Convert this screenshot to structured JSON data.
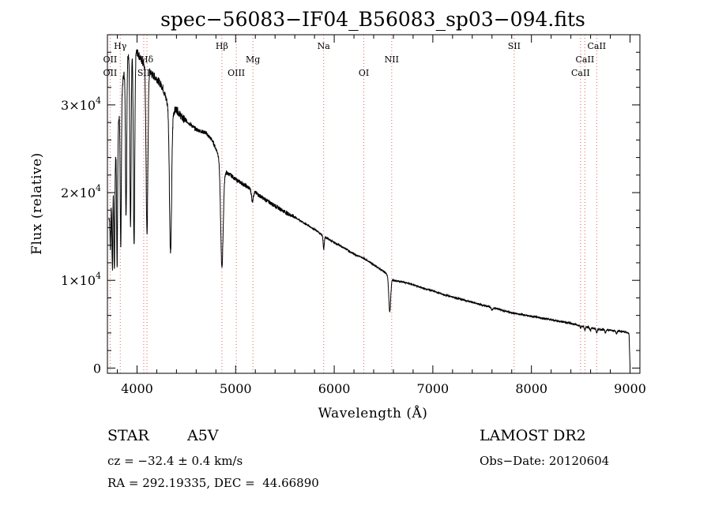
{
  "chart_data": {
    "type": "line",
    "title": "spec−56083−IF04_B56083_sp03−094.fits",
    "xlabel": "Wavelength (Å)",
    "ylabel": "Flux (relative)",
    "xlim": [
      3700,
      9100
    ],
    "ylim": [
      -600,
      38000
    ],
    "x_ticks": [
      4000,
      5000,
      6000,
      7000,
      8000,
      9000
    ],
    "x_tick_labels": [
      "4000",
      "5000",
      "6000",
      "7000",
      "8000",
      "9000"
    ],
    "y_ticks": [
      {
        "value": 0,
        "mantissa": "0",
        "exponent": ""
      },
      {
        "value": 10000,
        "mantissa": "1×10",
        "exponent": "4"
      },
      {
        "value": 20000,
        "mantissa": "2×10",
        "exponent": "4"
      },
      {
        "value": 30000,
        "mantissa": "3×10",
        "exponent": "4"
      }
    ],
    "continuum": [
      [
        3715,
        17000
      ],
      [
        3740,
        19000
      ],
      [
        3780,
        24000
      ],
      [
        3820,
        29000
      ],
      [
        3860,
        33000
      ],
      [
        3900,
        35500
      ],
      [
        3950,
        36500
      ],
      [
        4000,
        36000
      ],
      [
        4050,
        35000
      ],
      [
        4100,
        34500
      ],
      [
        4150,
        33500
      ],
      [
        4200,
        33000
      ],
      [
        4260,
        32000
      ],
      [
        4300,
        30500
      ],
      [
        4340,
        29000
      ],
      [
        4400,
        29500
      ],
      [
        4460,
        28500
      ],
      [
        4520,
        28000
      ],
      [
        4600,
        27200
      ],
      [
        4700,
        26800
      ],
      [
        4760,
        26000
      ],
      [
        4820,
        24500
      ],
      [
        4880,
        22500
      ],
      [
        4900,
        22300
      ],
      [
        4950,
        22000
      ],
      [
        5000,
        21500
      ],
      [
        5100,
        20800
      ],
      [
        5200,
        20000
      ],
      [
        5300,
        19200
      ],
      [
        5400,
        18500
      ],
      [
        5500,
        17800
      ],
      [
        5600,
        17200
      ],
      [
        5700,
        16500
      ],
      [
        5800,
        15800
      ],
      [
        5900,
        15000
      ],
      [
        6000,
        14300
      ],
      [
        6100,
        13700
      ],
      [
        6200,
        13000
      ],
      [
        6300,
        12500
      ],
      [
        6400,
        11800
      ],
      [
        6500,
        11000
      ],
      [
        6560,
        10500
      ],
      [
        6600,
        10000
      ],
      [
        6700,
        9800
      ],
      [
        6800,
        9500
      ],
      [
        6900,
        9100
      ],
      [
        7000,
        8800
      ],
      [
        7100,
        8400
      ],
      [
        7200,
        8100
      ],
      [
        7300,
        7800
      ],
      [
        7400,
        7500
      ],
      [
        7500,
        7200
      ],
      [
        7600,
        6900
      ],
      [
        7700,
        6600
      ],
      [
        7800,
        6300
      ],
      [
        7900,
        6100
      ],
      [
        8000,
        5900
      ],
      [
        8100,
        5700
      ],
      [
        8200,
        5500
      ],
      [
        8300,
        5300
      ],
      [
        8400,
        5100
      ],
      [
        8500,
        4800
      ],
      [
        8600,
        4600
      ],
      [
        8700,
        4400
      ],
      [
        8800,
        4300
      ],
      [
        8900,
        4200
      ],
      [
        8960,
        4100
      ],
      [
        8990,
        3900
      ],
      [
        9000,
        0
      ]
    ],
    "absorption": [
      {
        "center": 3730,
        "depth": 0.25,
        "width": 6
      },
      {
        "center": 3750,
        "depth": 0.45,
        "width": 6
      },
      {
        "center": 3770,
        "depth": 0.5,
        "width": 7
      },
      {
        "center": 3798,
        "depth": 0.55,
        "width": 7
      },
      {
        "center": 3835,
        "depth": 0.55,
        "width": 8
      },
      {
        "center": 3889,
        "depth": 0.5,
        "width": 9
      },
      {
        "center": 3934,
        "depth": 0.55,
        "width": 9
      },
      {
        "center": 3970,
        "depth": 0.62,
        "width": 10
      },
      {
        "center": 4101,
        "depth": 0.55,
        "width": 13
      },
      {
        "center": 4340,
        "depth": 0.55,
        "width": 15
      },
      {
        "center": 4861,
        "depth": 0.5,
        "width": 18
      },
      {
        "center": 5170,
        "depth": 0.06,
        "width": 12
      },
      {
        "center": 5893,
        "depth": 0.1,
        "width": 8
      },
      {
        "center": 6563,
        "depth": 0.38,
        "width": 14
      },
      {
        "center": 7600,
        "depth": 0.04,
        "width": 12
      },
      {
        "center": 8498,
        "depth": 0.06,
        "width": 6
      },
      {
        "center": 8542,
        "depth": 0.09,
        "width": 8
      },
      {
        "center": 8598,
        "depth": 0.08,
        "width": 7
      },
      {
        "center": 8662,
        "depth": 0.1,
        "width": 8
      },
      {
        "center": 8750,
        "depth": 0.08,
        "width": 8
      },
      {
        "center": 8863,
        "depth": 0.08,
        "width": 8
      }
    ],
    "line_markers": [
      {
        "label": "OII",
        "wavelength": 3727,
        "row": 2
      },
      {
        "label": "OII",
        "wavelength": 3727,
        "row": 3
      },
      {
        "label": "Hγ",
        "wavelength": 3830,
        "row": 1
      },
      {
        "label": "Hδ",
        "wavelength": 4101,
        "row": 2
      },
      {
        "label": "SII",
        "wavelength": 4068,
        "row": 3
      },
      {
        "label": "Hβ",
        "wavelength": 4861,
        "row": 1
      },
      {
        "label": "OIII",
        "wavelength": 5007,
        "row": 3
      },
      {
        "label": "Mg",
        "wavelength": 5175,
        "row": 2
      },
      {
        "label": "Na",
        "wavelength": 5893,
        "row": 1
      },
      {
        "label": "OI",
        "wavelength": 6300,
        "row": 3
      },
      {
        "label": "NII",
        "wavelength": 6583,
        "row": 2
      },
      {
        "label": "SII",
        "wavelength": 7825,
        "row": 1
      },
      {
        "label": "CaII",
        "wavelength": 8662,
        "row": 1
      },
      {
        "label": "CaII",
        "wavelength": 8542,
        "row": 2
      },
      {
        "label": "CaII",
        "wavelength": 8498,
        "row": 3
      }
    ],
    "marker_color": "#e06060"
  },
  "info": {
    "object_class": "STAR",
    "subclass": "A5V",
    "survey": "LAMOST DR2",
    "cz": "cz = −32.4 ± 0.4 km/s",
    "obs_date": "Obs−Date: 20120604",
    "coords": "RA = 292.19335, DEC =  44.66890"
  }
}
